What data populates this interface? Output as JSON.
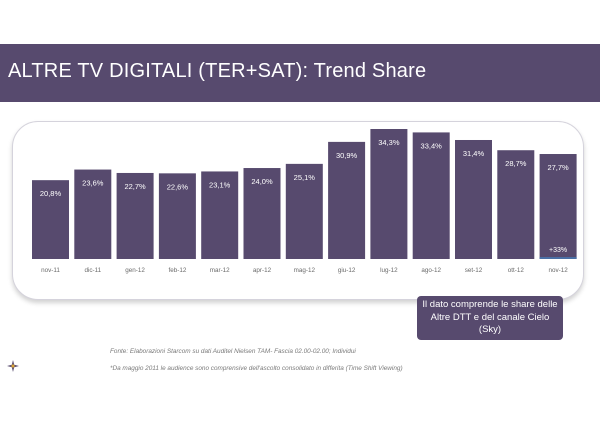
{
  "header": {
    "title": "ALTRE TV DIGITALI (TER+SAT): Trend Share"
  },
  "note": {
    "text": "Il dato comprende le share delle Altre DTT e del canale Cielo (Sky)"
  },
  "footer": {
    "source": "Fonte: Elaborazioni Starcom su dati Auditel Nielsen TAM- Fascia 02.00-02.00; Individui",
    "footnote": "*Da maggio 2011 le audience sono comprensive dell'ascolto consolidato in differita (Time Shift Viewing)"
  },
  "colors": {
    "bar": "#574a6e",
    "bar_small": "#4a6fa5",
    "title_bg": "#574a6e"
  },
  "chart_data": {
    "type": "bar",
    "categories": [
      "nov-11",
      "dic-11",
      "gen-12",
      "feb-12",
      "mar-12",
      "apr-12",
      "mag-12",
      "giu-12",
      "lug-12",
      "ago-12",
      "set-12",
      "ott-12",
      "nov-12"
    ],
    "values": [
      20.8,
      23.6,
      22.7,
      22.6,
      23.1,
      24.0,
      25.1,
      30.9,
      34.3,
      33.4,
      31.4,
      28.7,
      27.7
    ],
    "labels": [
      "20,8%",
      "23,6%",
      "22,7%",
      "22,6%",
      "23,1%",
      "24,0%",
      "25,1%",
      "30,9%",
      "34,3%",
      "33,4%",
      "31,4%",
      "28,7%",
      "27,7%"
    ],
    "annotation": "+33%",
    "ylim": [
      0,
      34.3
    ],
    "grid": false,
    "legend": false
  }
}
